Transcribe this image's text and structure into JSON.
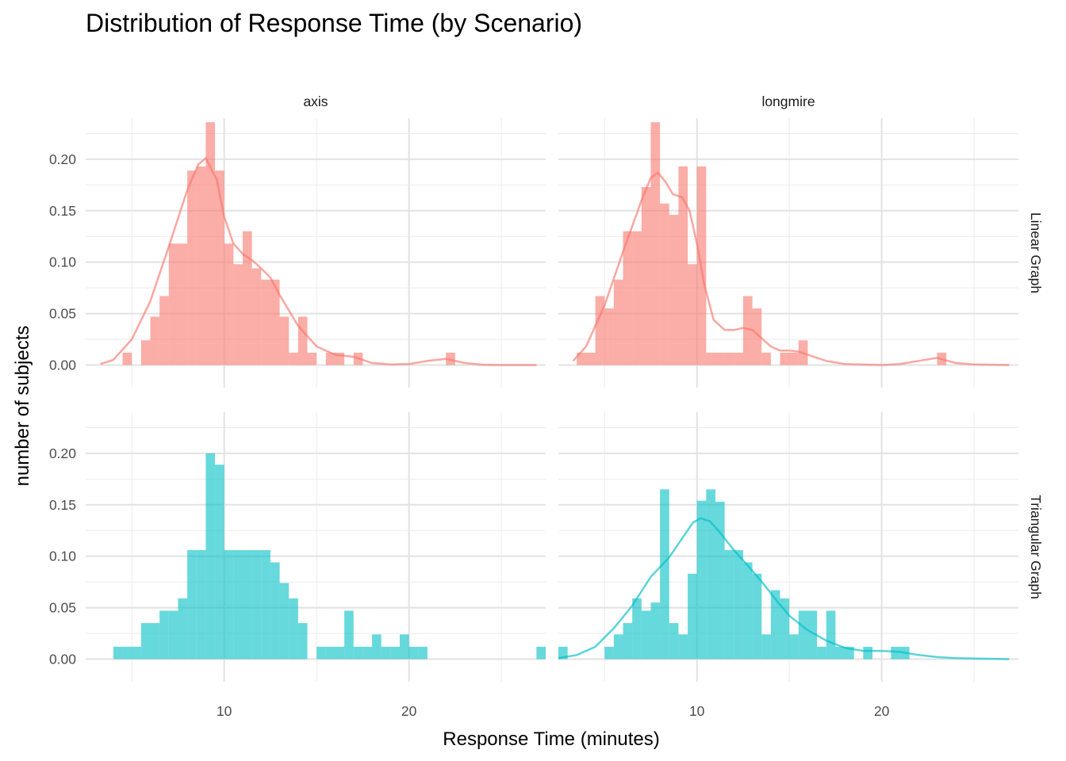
{
  "chart_data": {
    "type": "bar",
    "subtype": "faceted histogram with density overlay",
    "title": "Distribution of Response Time (by Scenario)",
    "xlabel": "Response Time (minutes)",
    "ylabel": "number of subjects",
    "xlim": [
      2.5,
      27.4
    ],
    "ylim": [
      -0.022,
      0.24
    ],
    "x_ticks": [
      10,
      20
    ],
    "y_ticks": [
      0.0,
      0.05,
      0.1,
      0.15,
      0.2
    ],
    "y_tick_labels": [
      "0.00",
      "0.05",
      "0.10",
      "0.15",
      "0.20"
    ],
    "grid": true,
    "legend": "none",
    "bin_width": 0.5,
    "columns": [
      "axis",
      "longmire"
    ],
    "rows": [
      "Linear Graph",
      "Triangular Graph"
    ],
    "colors": {
      "Linear Graph": "#F8766D",
      "Triangular Graph": "#00BFC4"
    },
    "panels": [
      {
        "column": "axis",
        "row": "Linear Graph",
        "bins": [
          [
            4.5,
            0.012
          ],
          [
            5.5,
            0.024
          ],
          [
            6.0,
            0.047
          ],
          [
            6.5,
            0.067
          ],
          [
            7.0,
            0.118
          ],
          [
            7.5,
            0.118
          ],
          [
            8.0,
            0.189
          ],
          [
            8.5,
            0.193
          ],
          [
            9.0,
            0.236
          ],
          [
            9.5,
            0.189
          ],
          [
            10.0,
            0.118
          ],
          [
            10.5,
            0.098
          ],
          [
            11.0,
            0.13
          ],
          [
            11.5,
            0.094
          ],
          [
            12.0,
            0.083
          ],
          [
            12.5,
            0.083
          ],
          [
            13.0,
            0.047
          ],
          [
            13.5,
            0.012
          ],
          [
            14.0,
            0.047
          ],
          [
            14.5,
            0.012
          ],
          [
            15.5,
            0.012
          ],
          [
            16.0,
            0.012
          ],
          [
            17.0,
            0.012
          ],
          [
            22.0,
            0.012
          ]
        ],
        "density": [
          [
            3.3,
            0.001
          ],
          [
            4.0,
            0.005
          ],
          [
            5.0,
            0.025
          ],
          [
            6.0,
            0.062
          ],
          [
            7.0,
            0.115
          ],
          [
            8.0,
            0.17
          ],
          [
            8.6,
            0.195
          ],
          [
            9.0,
            0.201
          ],
          [
            9.6,
            0.18
          ],
          [
            10.0,
            0.144
          ],
          [
            10.5,
            0.118
          ],
          [
            11.0,
            0.108
          ],
          [
            11.5,
            0.102
          ],
          [
            12.0,
            0.094
          ],
          [
            12.5,
            0.085
          ],
          [
            13.0,
            0.068
          ],
          [
            14.0,
            0.038
          ],
          [
            15.0,
            0.018
          ],
          [
            16.0,
            0.01
          ],
          [
            17.0,
            0.008
          ],
          [
            18.0,
            0.002
          ],
          [
            19.0,
            0.0005
          ],
          [
            20.0,
            0.001
          ],
          [
            21.0,
            0.004
          ],
          [
            22.0,
            0.006
          ],
          [
            23.0,
            0.002
          ],
          [
            24.0,
            0.0003
          ],
          [
            25.0,
            0.0
          ],
          [
            26.9,
            0.0
          ]
        ]
      },
      {
        "column": "longmire",
        "row": "Linear Graph",
        "bins": [
          [
            3.5,
            0.012
          ],
          [
            4.0,
            0.012
          ],
          [
            4.5,
            0.067
          ],
          [
            5.0,
            0.055
          ],
          [
            5.5,
            0.083
          ],
          [
            6.0,
            0.13
          ],
          [
            6.5,
            0.13
          ],
          [
            7.0,
            0.173
          ],
          [
            7.5,
            0.236
          ],
          [
            8.0,
            0.157
          ],
          [
            8.5,
            0.146
          ],
          [
            9.0,
            0.193
          ],
          [
            9.5,
            0.098
          ],
          [
            10.0,
            0.193
          ],
          [
            10.5,
            0.012
          ],
          [
            11.0,
            0.012
          ],
          [
            11.5,
            0.012
          ],
          [
            12.0,
            0.012
          ],
          [
            12.5,
            0.067
          ],
          [
            13.0,
            0.055
          ],
          [
            13.5,
            0.012
          ],
          [
            14.5,
            0.012
          ],
          [
            15.0,
            0.012
          ],
          [
            15.5,
            0.024
          ],
          [
            23.0,
            0.012
          ]
        ],
        "density": [
          [
            3.3,
            0.004
          ],
          [
            4.0,
            0.018
          ],
          [
            5.0,
            0.058
          ],
          [
            6.0,
            0.11
          ],
          [
            7.0,
            0.16
          ],
          [
            7.5,
            0.182
          ],
          [
            7.9,
            0.187
          ],
          [
            8.3,
            0.178
          ],
          [
            8.7,
            0.166
          ],
          [
            9.2,
            0.163
          ],
          [
            9.6,
            0.15
          ],
          [
            10.0,
            0.118
          ],
          [
            10.4,
            0.078
          ],
          [
            10.9,
            0.044
          ],
          [
            11.5,
            0.034
          ],
          [
            12.0,
            0.034
          ],
          [
            12.5,
            0.036
          ],
          [
            13.0,
            0.034
          ],
          [
            13.5,
            0.026
          ],
          [
            14.0,
            0.018
          ],
          [
            14.5,
            0.014
          ],
          [
            15.0,
            0.014
          ],
          [
            15.5,
            0.013
          ],
          [
            16.0,
            0.01
          ],
          [
            17.0,
            0.004
          ],
          [
            18.0,
            0.001
          ],
          [
            20.0,
            0.0
          ],
          [
            21.0,
            0.001
          ],
          [
            22.0,
            0.004
          ],
          [
            23.0,
            0.007
          ],
          [
            24.0,
            0.002
          ],
          [
            25.0,
            0.0005
          ],
          [
            26.9,
            0.0
          ]
        ]
      },
      {
        "column": "axis",
        "row": "Triangular Graph",
        "bins": [
          [
            4.0,
            0.012
          ],
          [
            4.5,
            0.012
          ],
          [
            5.0,
            0.012
          ],
          [
            5.5,
            0.035
          ],
          [
            6.0,
            0.035
          ],
          [
            6.5,
            0.047
          ],
          [
            7.0,
            0.047
          ],
          [
            7.5,
            0.059
          ],
          [
            8.0,
            0.106
          ],
          [
            8.5,
            0.106
          ],
          [
            9.0,
            0.2
          ],
          [
            9.5,
            0.189
          ],
          [
            10.0,
            0.106
          ],
          [
            10.5,
            0.106
          ],
          [
            11.0,
            0.106
          ],
          [
            11.5,
            0.106
          ],
          [
            12.0,
            0.106
          ],
          [
            12.5,
            0.094
          ],
          [
            13.0,
            0.074
          ],
          [
            13.5,
            0.059
          ],
          [
            14.0,
            0.035
          ],
          [
            15.0,
            0.012
          ],
          [
            15.5,
            0.012
          ],
          [
            16.0,
            0.012
          ],
          [
            16.5,
            0.047
          ],
          [
            17.0,
            0.012
          ],
          [
            17.5,
            0.012
          ],
          [
            18.0,
            0.024
          ],
          [
            18.5,
            0.012
          ],
          [
            19.0,
            0.012
          ],
          [
            19.5,
            0.024
          ],
          [
            20.0,
            0.012
          ],
          [
            20.5,
            0.012
          ],
          [
            26.9,
            0.012
          ]
        ]
      },
      {
        "column": "longmire",
        "row": "Triangular Graph",
        "bins": [
          [
            2.5,
            0.012
          ],
          [
            5.0,
            0.012
          ],
          [
            5.5,
            0.024
          ],
          [
            6.0,
            0.035
          ],
          [
            6.5,
            0.059
          ],
          [
            7.0,
            0.047
          ],
          [
            7.5,
            0.055
          ],
          [
            8.0,
            0.165
          ],
          [
            8.5,
            0.035
          ],
          [
            9.0,
            0.024
          ],
          [
            9.5,
            0.083
          ],
          [
            10.0,
            0.154
          ],
          [
            10.5,
            0.165
          ],
          [
            11.0,
            0.153
          ],
          [
            11.5,
            0.106
          ],
          [
            12.0,
            0.106
          ],
          [
            12.5,
            0.094
          ],
          [
            13.0,
            0.083
          ],
          [
            13.5,
            0.024
          ],
          [
            14.0,
            0.067
          ],
          [
            14.5,
            0.059
          ],
          [
            15.0,
            0.024
          ],
          [
            15.5,
            0.047
          ],
          [
            16.0,
            0.047
          ],
          [
            16.5,
            0.012
          ],
          [
            17.0,
            0.047
          ],
          [
            17.5,
            0.012
          ],
          [
            18.0,
            0.012
          ],
          [
            19.0,
            0.012
          ],
          [
            20.5,
            0.012
          ],
          [
            21.0,
            0.012
          ]
        ],
        "density": [
          [
            2.5,
            0.001
          ],
          [
            3.5,
            0.004
          ],
          [
            4.5,
            0.012
          ],
          [
            5.5,
            0.03
          ],
          [
            6.5,
            0.052
          ],
          [
            7.5,
            0.08
          ],
          [
            8.5,
            0.099
          ],
          [
            9.3,
            0.12
          ],
          [
            9.8,
            0.133
          ],
          [
            10.2,
            0.137
          ],
          [
            10.7,
            0.134
          ],
          [
            11.2,
            0.124
          ],
          [
            12.0,
            0.106
          ],
          [
            12.8,
            0.09
          ],
          [
            13.6,
            0.073
          ],
          [
            14.4,
            0.055
          ],
          [
            15.0,
            0.042
          ],
          [
            16.0,
            0.028
          ],
          [
            17.0,
            0.018
          ],
          [
            18.0,
            0.011
          ],
          [
            19.0,
            0.008
          ],
          [
            20.0,
            0.008
          ],
          [
            21.0,
            0.007
          ],
          [
            22.0,
            0.004
          ],
          [
            23.0,
            0.002
          ],
          [
            24.0,
            0.001
          ],
          [
            26.9,
            0.0
          ]
        ]
      }
    ]
  }
}
